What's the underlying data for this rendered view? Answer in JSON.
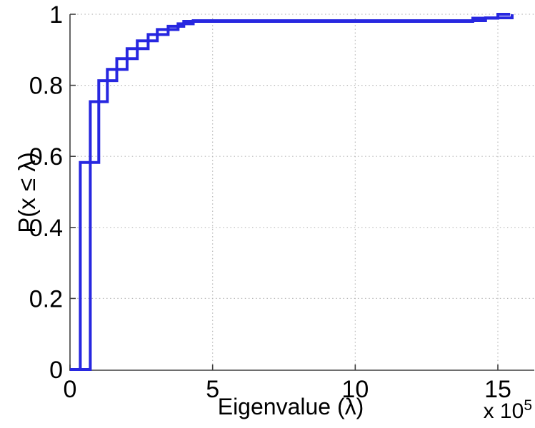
{
  "chart_data": {
    "type": "step",
    "subtype": "empirical-cdf-stairs",
    "title": "",
    "xlabel": "Eigenvalue (λ)",
    "ylabel": "P(x ≤ λ)",
    "multiplier": {
      "base": "x 10",
      "exp": "5"
    },
    "xlim": [
      0,
      16.3
    ],
    "ylim": [
      0,
      1
    ],
    "xticks": {
      "values": [
        0,
        5,
        10,
        15
      ],
      "labels": [
        "0",
        "5",
        "10",
        "15"
      ]
    },
    "yticks": {
      "values": [
        0,
        0.2,
        0.4,
        0.6,
        0.8,
        1
      ],
      "labels": [
        "0",
        "0.2",
        "0.4",
        "0.6",
        "0.8",
        "1"
      ]
    },
    "grid": true,
    "grid_style": "dotted",
    "legend": "none",
    "colors": {
      "line": "#2727e0",
      "grid": "#b9b9b9",
      "axis": "#3f3f3f",
      "text": "#000000",
      "background": "#ffffff"
    },
    "x_values_scale_note": "x-axis values are in units of 10^5 as indicated by the on-screen multiplier",
    "series": [
      {
        "name": "ecdf-curve-1",
        "color": "#2727e0",
        "start": [
          0,
          0
        ],
        "steps": [
          [
            0.36,
            0.583
          ],
          [
            0.71,
            0.754
          ],
          [
            1.01,
            0.813
          ],
          [
            1.31,
            0.845
          ],
          [
            1.64,
            0.875
          ],
          [
            2.0,
            0.903
          ],
          [
            2.36,
            0.925
          ],
          [
            2.74,
            0.943
          ],
          [
            3.06,
            0.957
          ],
          [
            3.44,
            0.966
          ],
          [
            3.79,
            0.973
          ],
          [
            3.99,
            0.98
          ],
          [
            14.12,
            0.989
          ],
          [
            15.0,
            1.0
          ]
        ],
        "x_end": 15.43
      },
      {
        "name": "ecdf-curve-2",
        "color": "#2727e0",
        "start": [
          0,
          0
        ],
        "steps": [
          [
            0.71,
            0.583
          ],
          [
            1.01,
            0.754
          ],
          [
            1.31,
            0.813
          ],
          [
            1.64,
            0.845
          ],
          [
            2.0,
            0.875
          ],
          [
            2.36,
            0.903
          ],
          [
            2.74,
            0.925
          ],
          [
            3.06,
            0.943
          ],
          [
            3.44,
            0.957
          ],
          [
            3.79,
            0.966
          ],
          [
            3.99,
            0.973
          ],
          [
            4.32,
            0.982
          ],
          [
            14.57,
            0.99
          ],
          [
            15.5,
            1.0
          ]
        ],
        "x_end": 15.5
      }
    ]
  }
}
